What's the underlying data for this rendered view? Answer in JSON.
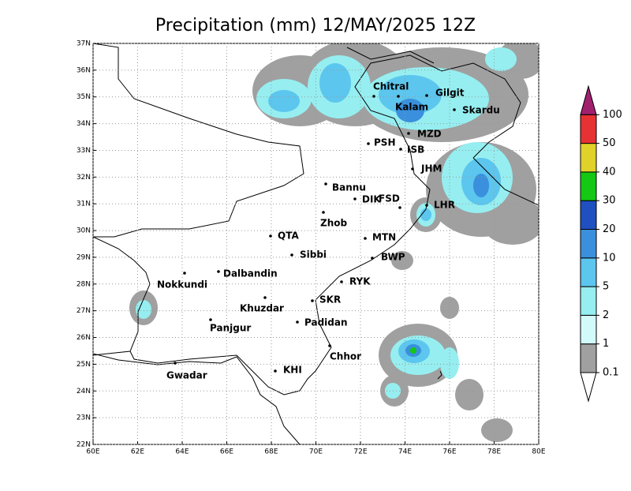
{
  "title": "Precipitation (mm) 12/MAY/2025 12Z",
  "lon_ticks": [
    {
      "value": 60,
      "label": "60E"
    },
    {
      "value": 62,
      "label": "62E"
    },
    {
      "value": 64,
      "label": "64E"
    },
    {
      "value": 66,
      "label": "66E"
    },
    {
      "value": 68,
      "label": "68E"
    },
    {
      "value": 70,
      "label": "70E"
    },
    {
      "value": 72,
      "label": "72E"
    },
    {
      "value": 74,
      "label": "74E"
    },
    {
      "value": 76,
      "label": "76E"
    },
    {
      "value": 78,
      "label": "78E"
    },
    {
      "value": 80,
      "label": "80E"
    }
  ],
  "lat_ticks": [
    {
      "value": 22,
      "label": "22N"
    },
    {
      "value": 23,
      "label": "23N"
    },
    {
      "value": 24,
      "label": "24N"
    },
    {
      "value": 25,
      "label": "25N"
    },
    {
      "value": 26,
      "label": "26N"
    },
    {
      "value": 27,
      "label": "27N"
    },
    {
      "value": 28,
      "label": "28N"
    },
    {
      "value": 29,
      "label": "29N"
    },
    {
      "value": 30,
      "label": "30N"
    },
    {
      "value": 31,
      "label": "31N"
    },
    {
      "value": 32,
      "label": "32N"
    },
    {
      "value": 33,
      "label": "33N"
    },
    {
      "value": 34,
      "label": "34N"
    },
    {
      "value": 35,
      "label": "35N"
    },
    {
      "value": 36,
      "label": "36N"
    },
    {
      "value": 37,
      "label": "37N"
    }
  ],
  "cities": [
    "Chitral",
    "Gilgit",
    "Kalam",
    "Skardu",
    "MZD",
    "PSH",
    "ISB",
    "JHM",
    "Bannu",
    "DIK",
    "FSD",
    "LHR",
    "Zhob",
    "QTA",
    "MTN",
    "Sibbi",
    "BWP",
    "Dalbandin",
    "Nokkundi",
    "RYK",
    "Khuzdar",
    "SKR",
    "Panjgur",
    "Padidan",
    "Chhor",
    "KHI",
    "Gwadar"
  ],
  "colorbar": {
    "levels": [
      0.1,
      1,
      2,
      5,
      10,
      20,
      30,
      40,
      50,
      100
    ],
    "colors": [
      "#a0a0a0",
      "#d2fafa",
      "#96eef0",
      "#5cc6ee",
      "#3a90dc",
      "#2050c0",
      "#14c814",
      "#e0d228",
      "#e63232"
    ],
    "under_color": "#ffffff",
    "over_color": "#a0206e"
  }
}
